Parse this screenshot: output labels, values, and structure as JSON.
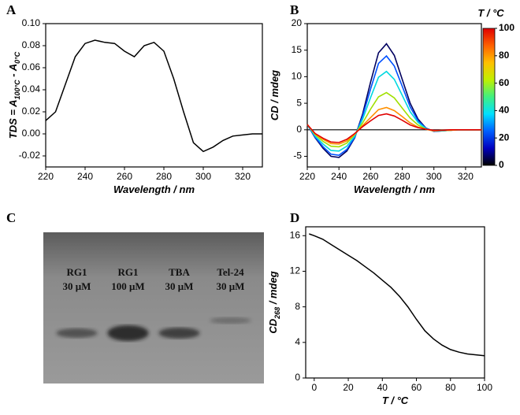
{
  "chart_data": [
    {
      "type": "line",
      "panel_label": "A",
      "xlabel": [
        "Wavelength / nm"
      ],
      "ylabel": [
        "TDS = A",
        "100°C",
        " - A",
        "0°C"
      ],
      "x": [
        220,
        225,
        230,
        235,
        240,
        245,
        250,
        255,
        260,
        265,
        270,
        275,
        280,
        285,
        290,
        295,
        300,
        305,
        310,
        315,
        320,
        325,
        330
      ],
      "values": [
        0.012,
        0.02,
        0.045,
        0.07,
        0.082,
        0.085,
        0.083,
        0.082,
        0.075,
        0.07,
        0.08,
        0.083,
        0.075,
        0.05,
        0.02,
        -0.008,
        -0.016,
        -0.012,
        -0.006,
        -0.002,
        -0.001,
        0,
        0
      ],
      "color": "#000000",
      "xlim": [
        220,
        330
      ],
      "xticks": [
        220,
        240,
        260,
        280,
        300,
        320
      ],
      "ylim": [
        -0.03,
        0.1
      ],
      "yticks": [
        {
          "value": 0.1,
          "label": "0.10"
        },
        0.08,
        0.06,
        0.04,
        0.02,
        {
          "value": 0,
          "label": "0.00"
        },
        -0.02
      ]
    },
    {
      "type": "line",
      "panel_label": "B",
      "xlabel": [
        "Wavelength / nm"
      ],
      "ylabel": [
        "CD / mdeg"
      ],
      "x": [
        220,
        225,
        230,
        235,
        240,
        245,
        250,
        255,
        260,
        265,
        270,
        275,
        280,
        285,
        290,
        295,
        300,
        305,
        310,
        315,
        320,
        325,
        330
      ],
      "series": [
        {
          "color": "#000060",
          "values": [
            1.0,
            -1.5,
            -3.5,
            -5.0,
            -5.2,
            -4.0,
            -1.5,
            3.0,
            9.0,
            14.5,
            16.2,
            14.0,
            9.5,
            5.0,
            2.0,
            0.3,
            -0.3,
            -0.2,
            -0.1,
            0,
            0,
            0,
            0
          ]
        },
        {
          "color": "#0050ff",
          "values": [
            1.0,
            -1.4,
            -3.2,
            -4.6,
            -4.8,
            -3.7,
            -1.4,
            2.6,
            7.7,
            12.5,
            13.9,
            12.0,
            8.2,
            4.3,
            1.7,
            0.3,
            -0.3,
            -0.2,
            -0.1,
            0,
            0,
            0,
            0
          ]
        },
        {
          "color": "#00d8e0",
          "values": [
            1.0,
            -1.2,
            -2.7,
            -3.9,
            -4.0,
            -3.1,
            -1.2,
            2.0,
            6.1,
            9.9,
            11.0,
            9.5,
            6.5,
            3.4,
            1.4,
            0.2,
            -0.2,
            -0.2,
            -0.1,
            0,
            0,
            0,
            0
          ]
        },
        {
          "color": "#a0e000",
          "values": [
            1.0,
            -0.9,
            -2.2,
            -3.1,
            -3.2,
            -2.5,
            -0.9,
            1.3,
            3.9,
            6.2,
            7.0,
            6.0,
            4.1,
            2.2,
            0.9,
            0.1,
            -0.2,
            -0.1,
            -0.1,
            0,
            0,
            0,
            0
          ]
        },
        {
          "color": "#ff9000",
          "values": [
            1.0,
            -0.8,
            -1.8,
            -2.6,
            -2.7,
            -2.1,
            -0.8,
            0.8,
            2.3,
            3.8,
            4.2,
            3.6,
            2.5,
            1.3,
            0.5,
            0.1,
            -0.2,
            -0.1,
            -0.1,
            0,
            0,
            0,
            0
          ]
        },
        {
          "color": "#e00000",
          "values": [
            1.0,
            -0.7,
            -1.6,
            -2.3,
            -2.4,
            -1.8,
            -0.7,
            0.6,
            1.7,
            2.7,
            3.0,
            2.6,
            1.8,
            0.9,
            0.4,
            0.1,
            -0.1,
            -0.1,
            0,
            0,
            0,
            0,
            0
          ]
        }
      ],
      "zero_line": true,
      "xlim": [
        220,
        330
      ],
      "xticks": [
        220,
        240,
        260,
        280,
        300,
        320
      ],
      "ylim": [
        -7,
        20
      ],
      "yticks": [
        -5,
        0,
        5,
        10,
        15,
        20
      ],
      "colorbar": {
        "title": [
          "T / °C"
        ],
        "lim": [
          0,
          100
        ],
        "ticks": [
          0,
          20,
          40,
          60,
          80,
          100
        ],
        "colors": [
          "#000000",
          "#0000c0",
          "#0060ff",
          "#00e0ff",
          "#40f080",
          "#c0f000",
          "#ffc000",
          "#ff6000",
          "#e00000"
        ]
      }
    },
    {
      "type": "gel",
      "panel_label": "C",
      "lanes": [
        {
          "name": "RG1",
          "conc": "30 μM"
        },
        {
          "name": "RG1",
          "conc": "100 μM"
        },
        {
          "name": "TBA",
          "conc": "30 μM"
        },
        {
          "name": "Tel-24",
          "conc": "30 μM"
        }
      ]
    },
    {
      "type": "line",
      "panel_label": "D",
      "xlabel": [
        "T / °C"
      ],
      "ylabel": [
        "CD",
        "268",
        " / mdeg"
      ],
      "x": [
        -3,
        0,
        5,
        10,
        15,
        20,
        25,
        30,
        35,
        40,
        45,
        50,
        55,
        60,
        65,
        70,
        75,
        80,
        85,
        90,
        95,
        100
      ],
      "values": [
        16.2,
        16.0,
        15.6,
        15.0,
        14.4,
        13.8,
        13.2,
        12.5,
        11.8,
        11.0,
        10.2,
        9.2,
        8.0,
        6.6,
        5.3,
        4.4,
        3.7,
        3.2,
        2.9,
        2.7,
        2.6,
        2.5
      ],
      "color": "#000000",
      "xlim": [
        -5,
        100
      ],
      "xticks": [
        0,
        20,
        40,
        60,
        80,
        100
      ],
      "ylim": [
        0,
        17
      ],
      "yticks": [
        0,
        4,
        8,
        12,
        16
      ]
    }
  ]
}
